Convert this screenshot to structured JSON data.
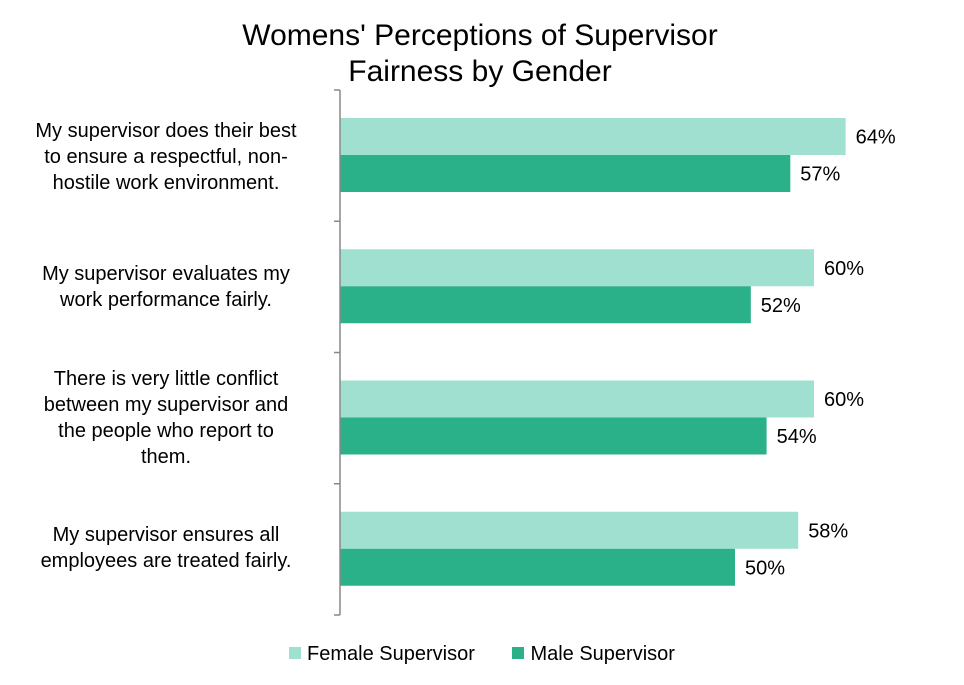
{
  "colors": {
    "female": "#a0e0d0",
    "male": "#2bb18a",
    "axis": "#888888"
  },
  "chart_data": {
    "type": "bar",
    "orientation": "horizontal",
    "title_lines": [
      "Womens' Perceptions of Supervisor",
      "Fairness by Gender"
    ],
    "categories": [
      "My supervisor does their best to ensure a respectful, non-hostile work environment.",
      "My supervisor evaluates my work performance fairly.",
      "There is very little conflict between my supervisor and the people who report to them.",
      "My supervisor ensures all employees are treated fairly."
    ],
    "category_lines": [
      [
        "My supervisor does their best",
        "to ensure a respectful, non-",
        "hostile work environment."
      ],
      [
        "My supervisor evaluates my",
        "work performance fairly."
      ],
      [
        "There is very little conflict",
        "between my supervisor and",
        "the people who report to",
        "them."
      ],
      [
        "My supervisor ensures all",
        "employees are treated fairly."
      ]
    ],
    "series": [
      {
        "name": "Female Supervisor",
        "values": [
          64,
          60,
          60,
          58
        ],
        "labels": [
          "64%",
          "60%",
          "60%",
          "58%"
        ]
      },
      {
        "name": "Male Supervisor",
        "values": [
          57,
          52,
          54,
          50
        ],
        "labels": [
          "57%",
          "52%",
          "54%",
          "50%"
        ]
      }
    ],
    "xlim": [
      0,
      100
    ],
    "grid": false,
    "legend_position": "bottom"
  }
}
